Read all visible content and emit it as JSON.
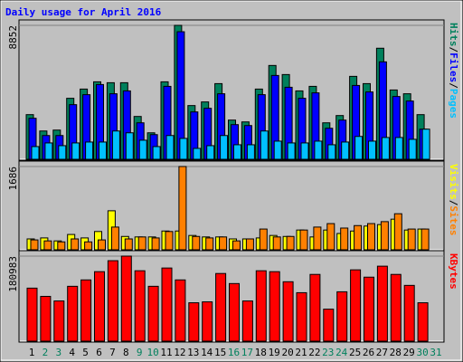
{
  "chart_data": [
    {
      "type": "bar",
      "title": "Daily usage for April 2016",
      "ylim": [
        0,
        8852
      ],
      "yticks": [
        8852
      ],
      "grid": true,
      "legend": "right",
      "legend_separator": "/",
      "series": [
        {
          "name": "Hits",
          "color": "#00805c",
          "values": [
            2950,
            1870,
            1930,
            4030,
            4640,
            5120,
            5060,
            5060,
            2830,
            1750,
            5120,
            8852,
            3550,
            3790,
            5000,
            2590,
            2470,
            4640,
            6200,
            5600,
            4520,
            4820,
            2410,
            2890,
            5480,
            5000,
            7340,
            4580,
            4330,
            2950,
            null
          ]
        },
        {
          "name": "Files",
          "color": "#0000ff",
          "values": [
            2710,
            1570,
            1570,
            3610,
            4270,
            4940,
            4330,
            4520,
            2410,
            1630,
            4820,
            8430,
            3130,
            3370,
            4330,
            2290,
            2230,
            4270,
            5540,
            4760,
            4030,
            4390,
            2050,
            2590,
            4880,
            4450,
            6440,
            4150,
            3850,
            1990,
            null
          ]
        },
        {
          "name": "Pages",
          "color": "#00c0ff",
          "values": [
            840,
            1080,
            900,
            1080,
            1140,
            1140,
            1870,
            1750,
            1260,
            840,
            1570,
            1380,
            720,
            900,
            1570,
            960,
            960,
            1870,
            1200,
            1080,
            1080,
            1200,
            960,
            1140,
            1510,
            1200,
            1440,
            1440,
            1320,
            1990,
            null
          ]
        }
      ]
    },
    {
      "type": "bar",
      "ylim": [
        0,
        1686
      ],
      "yticks": [
        1686
      ],
      "grid": true,
      "legend": "right",
      "legend_separator": "/",
      "series": [
        {
          "name": "Visits",
          "color": "#ffff00",
          "values": [
            220,
            240,
            180,
            310,
            240,
            370,
            790,
            270,
            260,
            260,
            380,
            380,
            290,
            260,
            260,
            220,
            220,
            240,
            290,
            270,
            400,
            260,
            400,
            330,
            380,
            480,
            510,
            620,
            400,
            420,
            null
          ]
        },
        {
          "name": "Sites",
          "color": "#ff8000",
          "values": [
            200,
            180,
            160,
            220,
            160,
            200,
            460,
            220,
            260,
            240,
            370,
            1686,
            270,
            240,
            260,
            180,
            220,
            420,
            260,
            270,
            400,
            460,
            530,
            440,
            490,
            530,
            570,
            730,
            420,
            420,
            null
          ]
        }
      ]
    },
    {
      "type": "bar",
      "ylim": [
        0,
        180983
      ],
      "yticks": [
        180983
      ],
      "grid": true,
      "legend": "right",
      "categories": [
        "1",
        "2",
        "3",
        "4",
        "5",
        "6",
        "7",
        "8",
        "9",
        "10",
        "11",
        "12",
        "13",
        "14",
        "15",
        "16",
        "17",
        "18",
        "19",
        "20",
        "21",
        "22",
        "23",
        "24",
        "25",
        "26",
        "27",
        "28",
        "29",
        "30",
        "31"
      ],
      "category_colors": [
        "#000000",
        "#00805c",
        "#00805c",
        "#000000",
        "#000000",
        "#000000",
        "#000000",
        "#000000",
        "#00805c",
        "#00805c",
        "#000000",
        "#000000",
        "#000000",
        "#000000",
        "#000000",
        "#00805c",
        "#00805c",
        "#000000",
        "#000000",
        "#000000",
        "#000000",
        "#000000",
        "#00805c",
        "#00805c",
        "#000000",
        "#000000",
        "#000000",
        "#000000",
        "#000000",
        "#00805c",
        "#00805c"
      ],
      "series": [
        {
          "name": "KBytes",
          "color": "#ff0000",
          "values": [
            112870,
            95350,
            85620,
            116760,
            130380,
            147900,
            171250,
            180983,
            149840,
            116760,
            155680,
            130380,
            81730,
            83680,
            144000,
            122600,
            85620,
            149840,
            147900,
            126490,
            103140,
            142060,
            68110,
            105080,
            151790,
            136220,
            159570,
            142060,
            118710,
            81730,
            null
          ]
        }
      ]
    }
  ]
}
